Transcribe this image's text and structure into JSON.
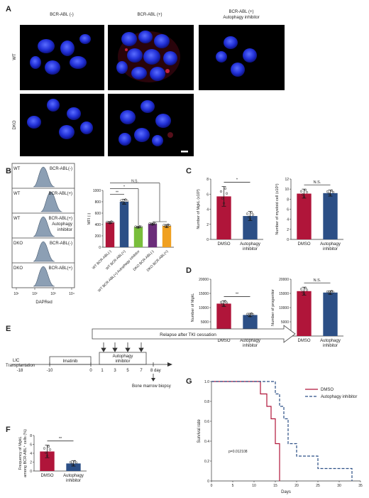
{
  "panel_labels": {
    "A": "A",
    "B": "B",
    "C": "C",
    "D": "D",
    "E": "E",
    "F": "F",
    "G": "G"
  },
  "panelA": {
    "col_labels": [
      "BCR-ABL (-)",
      "BCR-ABL (+)",
      "BCR-ABL (+)",
      "Autophagy inhibitor"
    ],
    "row_labels": [
      "WT",
      "DKO"
    ]
  },
  "panelB": {
    "histo_rows": [
      {
        "geno": "WT",
        "cond": "BCR-ABL(-)"
      },
      {
        "geno": "WT",
        "cond": "BCR-ABL(+)"
      },
      {
        "geno": "WT",
        "cond": "BCR-ABL(+)",
        "cond2": "Autophagy",
        "cond3": "inhibitor"
      },
      {
        "geno": "DKO",
        "cond": "BCR-ABL(-)"
      },
      {
        "geno": "DKO",
        "cond": "BCR-ABL(+)"
      }
    ],
    "histo_xticks": [
      "10¹",
      "10²",
      "10³",
      "10⁴"
    ],
    "histo_xlabel": "DAPRed"
  },
  "chart_data": [
    {
      "id": "B-bar",
      "type": "bar",
      "ylabel": "MFI (-)",
      "ylim": [
        0,
        1000
      ],
      "yticks": [
        "0",
        "200",
        "400",
        "600",
        "800",
        "1000"
      ],
      "categories": [
        "WT BCR-ABL(-)",
        "WT BCR-ABL(+)",
        "WT BCR-ABL(+) Autophagy inhibitor",
        "DKO BCR-ABL(-)",
        "DKO BCR-ABL(+)"
      ],
      "values": [
        435,
        800,
        355,
        410,
        375
      ],
      "errors": [
        18,
        45,
        12,
        15,
        25
      ],
      "colors": [
        "#b0153a",
        "#2c4f86",
        "#79be3b",
        "#6b2d7a",
        "#f0a020"
      ],
      "annotations": [
        "**",
        "*",
        "N.S."
      ]
    },
    {
      "id": "C-left",
      "type": "bar",
      "ylabel": "Number of MgkL (x10³)",
      "ylim": [
        0,
        8
      ],
      "yticks": [
        "0",
        "2",
        "4",
        "6",
        "8"
      ],
      "categories": [
        "DMSO",
        "Autophagy inhibitor"
      ],
      "values": [
        5.7,
        3.1
      ],
      "errors": [
        1.3,
        0.6
      ],
      "colors": [
        "#b0153a",
        "#2c4f86"
      ],
      "annotation": "*"
    },
    {
      "id": "C-right",
      "type": "bar",
      "ylabel": "Number of myeloid cell (x10⁵)",
      "ylim": [
        0,
        12
      ],
      "yticks": [
        "0",
        "2",
        "4",
        "6",
        "8",
        "10",
        "12"
      ],
      "categories": [
        "DMSO",
        "Autophagy inhibitor"
      ],
      "values": [
        9.1,
        9.2
      ],
      "errors": [
        0.9,
        0.6
      ],
      "colors": [
        "#b0153a",
        "#2c4f86"
      ],
      "annotation": "N.S."
    },
    {
      "id": "D-left",
      "type": "bar",
      "ylabel": "Number of MgkL",
      "ylim": [
        0,
        20000
      ],
      "yticks": [
        "0",
        "5000",
        "10000",
        "15000",
        "20000"
      ],
      "categories": [
        "DMSO",
        "Autophagy inhibitor"
      ],
      "values": [
        11400,
        7400
      ],
      "errors": [
        1000,
        600
      ],
      "colors": [
        "#b0153a",
        "#2c4f86"
      ],
      "annotation": "**"
    },
    {
      "id": "D-right",
      "type": "bar",
      "ylabel": "Number of progenitor",
      "ylim": [
        0,
        20000
      ],
      "yticks": [
        "0",
        "5000",
        "10000",
        "15000",
        "20000"
      ],
      "categories": [
        "DMSO",
        "Autophagy inhibitor"
      ],
      "values": [
        15800,
        15300
      ],
      "errors": [
        1400,
        600
      ],
      "colors": [
        "#b0153a",
        "#2c4f86"
      ],
      "annotation": "N.S."
    },
    {
      "id": "F",
      "type": "bar",
      "ylabel": "Frequency of MgkL among BCR-ABL⁺ cells (%)",
      "ylim": [
        0,
        8
      ],
      "yticks": [
        "0",
        "2",
        "4",
        "6",
        "8"
      ],
      "categories": [
        "DMSO",
        "Autophagy inhibitor"
      ],
      "values": [
        4.4,
        1.7
      ],
      "errors": [
        1.4,
        0.6
      ],
      "colors": [
        "#b0153a",
        "#2c4f86"
      ],
      "annotation": "**"
    },
    {
      "id": "G",
      "type": "line",
      "xlabel": "Days",
      "ylabel": "Survival rate",
      "xlim": [
        0,
        35
      ],
      "ylim": [
        0,
        1
      ],
      "xticks": [
        "0",
        "5",
        "10",
        "15",
        "20",
        "25",
        "30",
        "35"
      ],
      "yticks": [
        "0",
        "0.2",
        "0.4",
        "0.6",
        "0.8",
        "1.0"
      ],
      "annotation": "p=0.012108",
      "legend_position": "top-right",
      "series": [
        {
          "name": "DMSO",
          "color": "#b0153a",
          "dash": false,
          "x": [
            0,
            11.5,
            11.5,
            13,
            13,
            14,
            14,
            15,
            15,
            16,
            16
          ],
          "y": [
            1,
            1,
            0.875,
            0.875,
            0.75,
            0.75,
            0.625,
            0.625,
            0.375,
            0.375,
            0
          ]
        },
        {
          "name": "Autophagy inhibitor",
          "color": "#2c4f86",
          "dash": true,
          "x": [
            0,
            15,
            15,
            16,
            16,
            17,
            17,
            18,
            18,
            20,
            20,
            25,
            25,
            33,
            33
          ],
          "y": [
            1,
            1,
            0.875,
            0.875,
            0.75,
            0.75,
            0.625,
            0.625,
            0.375,
            0.375,
            0.25,
            0.25,
            0.125,
            0.125,
            0
          ]
        }
      ]
    }
  ],
  "panelE": {
    "arrow_label": "Relapse after TKI cessation",
    "lic_line1": "LIC",
    "lic_line2": "Transplantation",
    "imatinib": "Imatinib",
    "autophagy": "Autophagy",
    "inhibitor": "inhibitor",
    "tick_labels": [
      "-18",
      "-10",
      "0",
      "1",
      "3",
      "5",
      "7",
      "8 day"
    ],
    "biopsy": "Bone marrow biopsy"
  }
}
